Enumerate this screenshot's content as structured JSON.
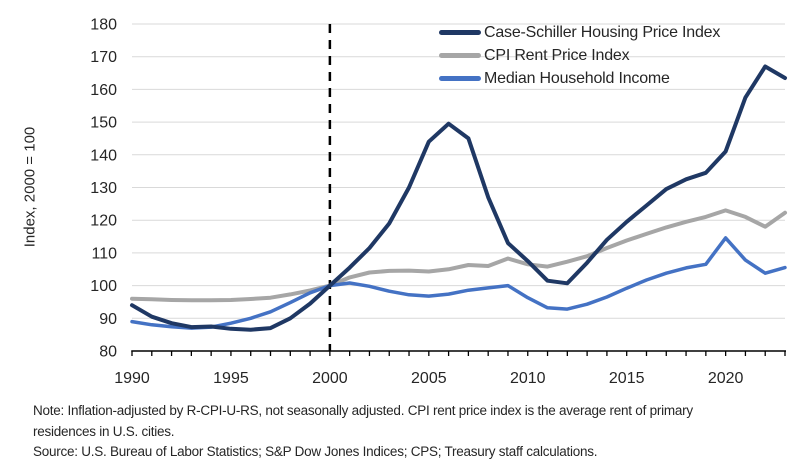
{
  "chart_data": {
    "type": "line",
    "title": "",
    "xlabel": "",
    "ylabel": "Index, 2000 = 100",
    "xlim": [
      1990,
      2023
    ],
    "ylim": [
      80,
      180
    ],
    "grid": "horizontal",
    "legend_position": "top-right",
    "gridline_color": "#D9D9D9",
    "axis_color": "#000000",
    "tick_label_color": "#262626",
    "reference_line": {
      "x": 2000,
      "style": "dashed",
      "color": "#000000"
    },
    "x_ticks_labeled": [
      1990,
      1995,
      2000,
      2005,
      2010,
      2015,
      2020
    ],
    "x_ticks_minor_every": 1,
    "y_ticks": [
      80,
      90,
      100,
      110,
      120,
      130,
      140,
      150,
      160,
      170,
      180
    ],
    "x": [
      1990,
      1991,
      1992,
      1993,
      1994,
      1995,
      1996,
      1997,
      1998,
      1999,
      2000,
      2001,
      2002,
      2003,
      2004,
      2005,
      2006,
      2007,
      2008,
      2009,
      2010,
      2011,
      2012,
      2013,
      2014,
      2015,
      2016,
      2017,
      2018,
      2019,
      2020,
      2021,
      2022,
      2023
    ],
    "series": [
      {
        "name": "Case-Schiller Housing Price Index",
        "color": "#1F3864",
        "width": 4,
        "values": [
          94,
          90.5,
          88.5,
          87.3,
          87.5,
          86.8,
          86.5,
          87,
          90,
          94.5,
          100,
          105.5,
          111.5,
          119,
          130,
          144,
          149.5,
          145,
          127,
          113,
          107.5,
          101.5,
          100.7,
          107,
          114,
          119.5,
          124.5,
          129.5,
          132.5,
          134.5,
          141,
          157.5,
          167,
          163.5
        ]
      },
      {
        "name": "CPI Rent Price Index",
        "color": "#A6A6A6",
        "width": 4,
        "values": [
          96,
          95.8,
          95.6,
          95.5,
          95.5,
          95.6,
          95.9,
          96.3,
          97.3,
          98.5,
          100,
          102.5,
          104,
          104.5,
          104.6,
          104.3,
          105,
          106.3,
          106,
          108.3,
          106.5,
          105.8,
          107.3,
          109,
          111.5,
          113.8,
          115.8,
          117.8,
          119.5,
          121,
          123,
          121,
          118,
          122.3
        ]
      },
      {
        "name": "Median Household Income",
        "color": "#4472C4",
        "width": 3.5,
        "values": [
          89,
          88,
          87.4,
          87,
          87.3,
          88.5,
          90,
          92,
          94.8,
          97.8,
          100,
          100.8,
          99.8,
          98.3,
          97.2,
          96.8,
          97.4,
          98.6,
          99.3,
          100,
          96.3,
          93.2,
          92.8,
          94.3,
          96.5,
          99.2,
          101.7,
          103.8,
          105.4,
          106.5,
          114.6,
          107.8,
          103.8,
          105.5
        ]
      }
    ]
  },
  "notes": {
    "note": "Note: Inflation-adjusted by R-CPI-U-RS, not seasonally adjusted. CPI rent price index is the average rent of primary residences in U.S. cities.",
    "source": "Source: U.S. Bureau of Labor Statistics; S&P Dow Jones Indices; CPS; Treasury staff calculations."
  }
}
